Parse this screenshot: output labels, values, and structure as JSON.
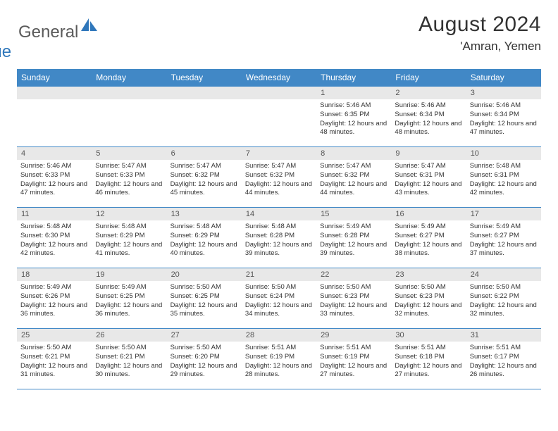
{
  "logo": {
    "general": "General",
    "blue": "Blue"
  },
  "title": "August 2024",
  "location": "'Amran, Yemen",
  "weekdays": [
    "Sunday",
    "Monday",
    "Tuesday",
    "Wednesday",
    "Thursday",
    "Friday",
    "Saturday"
  ],
  "colors": {
    "header_bg": "#4188c6",
    "header_text": "#ffffff",
    "daynum_bg": "#e8e8e8",
    "border": "#4188c6",
    "logo_gray": "#5a5a5a",
    "logo_blue": "#2f77bb"
  },
  "weeks": [
    [
      {
        "n": "",
        "sunrise": "",
        "sunset": "",
        "daylight": ""
      },
      {
        "n": "",
        "sunrise": "",
        "sunset": "",
        "daylight": ""
      },
      {
        "n": "",
        "sunrise": "",
        "sunset": "",
        "daylight": ""
      },
      {
        "n": "",
        "sunrise": "",
        "sunset": "",
        "daylight": ""
      },
      {
        "n": "1",
        "sunrise": "Sunrise: 5:46 AM",
        "sunset": "Sunset: 6:35 PM",
        "daylight": "Daylight: 12 hours and 48 minutes."
      },
      {
        "n": "2",
        "sunrise": "Sunrise: 5:46 AM",
        "sunset": "Sunset: 6:34 PM",
        "daylight": "Daylight: 12 hours and 48 minutes."
      },
      {
        "n": "3",
        "sunrise": "Sunrise: 5:46 AM",
        "sunset": "Sunset: 6:34 PM",
        "daylight": "Daylight: 12 hours and 47 minutes."
      }
    ],
    [
      {
        "n": "4",
        "sunrise": "Sunrise: 5:46 AM",
        "sunset": "Sunset: 6:33 PM",
        "daylight": "Daylight: 12 hours and 47 minutes."
      },
      {
        "n": "5",
        "sunrise": "Sunrise: 5:47 AM",
        "sunset": "Sunset: 6:33 PM",
        "daylight": "Daylight: 12 hours and 46 minutes."
      },
      {
        "n": "6",
        "sunrise": "Sunrise: 5:47 AM",
        "sunset": "Sunset: 6:32 PM",
        "daylight": "Daylight: 12 hours and 45 minutes."
      },
      {
        "n": "7",
        "sunrise": "Sunrise: 5:47 AM",
        "sunset": "Sunset: 6:32 PM",
        "daylight": "Daylight: 12 hours and 44 minutes."
      },
      {
        "n": "8",
        "sunrise": "Sunrise: 5:47 AM",
        "sunset": "Sunset: 6:32 PM",
        "daylight": "Daylight: 12 hours and 44 minutes."
      },
      {
        "n": "9",
        "sunrise": "Sunrise: 5:47 AM",
        "sunset": "Sunset: 6:31 PM",
        "daylight": "Daylight: 12 hours and 43 minutes."
      },
      {
        "n": "10",
        "sunrise": "Sunrise: 5:48 AM",
        "sunset": "Sunset: 6:31 PM",
        "daylight": "Daylight: 12 hours and 42 minutes."
      }
    ],
    [
      {
        "n": "11",
        "sunrise": "Sunrise: 5:48 AM",
        "sunset": "Sunset: 6:30 PM",
        "daylight": "Daylight: 12 hours and 42 minutes."
      },
      {
        "n": "12",
        "sunrise": "Sunrise: 5:48 AM",
        "sunset": "Sunset: 6:29 PM",
        "daylight": "Daylight: 12 hours and 41 minutes."
      },
      {
        "n": "13",
        "sunrise": "Sunrise: 5:48 AM",
        "sunset": "Sunset: 6:29 PM",
        "daylight": "Daylight: 12 hours and 40 minutes."
      },
      {
        "n": "14",
        "sunrise": "Sunrise: 5:48 AM",
        "sunset": "Sunset: 6:28 PM",
        "daylight": "Daylight: 12 hours and 39 minutes."
      },
      {
        "n": "15",
        "sunrise": "Sunrise: 5:49 AM",
        "sunset": "Sunset: 6:28 PM",
        "daylight": "Daylight: 12 hours and 39 minutes."
      },
      {
        "n": "16",
        "sunrise": "Sunrise: 5:49 AM",
        "sunset": "Sunset: 6:27 PM",
        "daylight": "Daylight: 12 hours and 38 minutes."
      },
      {
        "n": "17",
        "sunrise": "Sunrise: 5:49 AM",
        "sunset": "Sunset: 6:27 PM",
        "daylight": "Daylight: 12 hours and 37 minutes."
      }
    ],
    [
      {
        "n": "18",
        "sunrise": "Sunrise: 5:49 AM",
        "sunset": "Sunset: 6:26 PM",
        "daylight": "Daylight: 12 hours and 36 minutes."
      },
      {
        "n": "19",
        "sunrise": "Sunrise: 5:49 AM",
        "sunset": "Sunset: 6:25 PM",
        "daylight": "Daylight: 12 hours and 36 minutes."
      },
      {
        "n": "20",
        "sunrise": "Sunrise: 5:50 AM",
        "sunset": "Sunset: 6:25 PM",
        "daylight": "Daylight: 12 hours and 35 minutes."
      },
      {
        "n": "21",
        "sunrise": "Sunrise: 5:50 AM",
        "sunset": "Sunset: 6:24 PM",
        "daylight": "Daylight: 12 hours and 34 minutes."
      },
      {
        "n": "22",
        "sunrise": "Sunrise: 5:50 AM",
        "sunset": "Sunset: 6:23 PM",
        "daylight": "Daylight: 12 hours and 33 minutes."
      },
      {
        "n": "23",
        "sunrise": "Sunrise: 5:50 AM",
        "sunset": "Sunset: 6:23 PM",
        "daylight": "Daylight: 12 hours and 32 minutes."
      },
      {
        "n": "24",
        "sunrise": "Sunrise: 5:50 AM",
        "sunset": "Sunset: 6:22 PM",
        "daylight": "Daylight: 12 hours and 32 minutes."
      }
    ],
    [
      {
        "n": "25",
        "sunrise": "Sunrise: 5:50 AM",
        "sunset": "Sunset: 6:21 PM",
        "daylight": "Daylight: 12 hours and 31 minutes."
      },
      {
        "n": "26",
        "sunrise": "Sunrise: 5:50 AM",
        "sunset": "Sunset: 6:21 PM",
        "daylight": "Daylight: 12 hours and 30 minutes."
      },
      {
        "n": "27",
        "sunrise": "Sunrise: 5:50 AM",
        "sunset": "Sunset: 6:20 PM",
        "daylight": "Daylight: 12 hours and 29 minutes."
      },
      {
        "n": "28",
        "sunrise": "Sunrise: 5:51 AM",
        "sunset": "Sunset: 6:19 PM",
        "daylight": "Daylight: 12 hours and 28 minutes."
      },
      {
        "n": "29",
        "sunrise": "Sunrise: 5:51 AM",
        "sunset": "Sunset: 6:19 PM",
        "daylight": "Daylight: 12 hours and 27 minutes."
      },
      {
        "n": "30",
        "sunrise": "Sunrise: 5:51 AM",
        "sunset": "Sunset: 6:18 PM",
        "daylight": "Daylight: 12 hours and 27 minutes."
      },
      {
        "n": "31",
        "sunrise": "Sunrise: 5:51 AM",
        "sunset": "Sunset: 6:17 PM",
        "daylight": "Daylight: 12 hours and 26 minutes."
      }
    ]
  ]
}
